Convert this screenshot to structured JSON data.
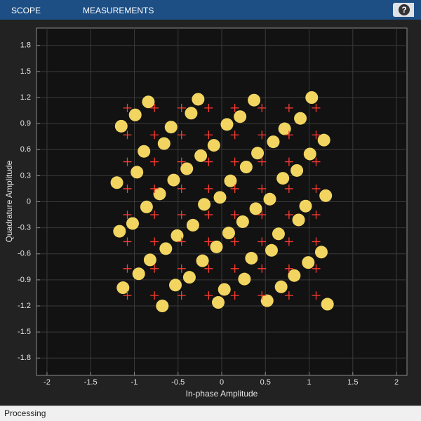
{
  "toolbar": {
    "tabs": [
      "SCOPE",
      "MEASUREMENTS"
    ],
    "help": "?"
  },
  "status": "Processing",
  "chart_data": {
    "type": "scatter",
    "xlabel": "In-phase Amplitude",
    "ylabel": "Quadrature Amplitude",
    "xlim": [
      -2.12,
      2.12
    ],
    "ylim": [
      -2,
      2
    ],
    "xticks": [
      -2,
      -1.5,
      -1,
      -0.5,
      0,
      0.5,
      1,
      1.5,
      2
    ],
    "yticks": [
      -1.8,
      -1.5,
      -1.2,
      -0.9,
      -0.6,
      -0.3,
      0,
      0.3,
      0.6,
      0.9,
      1.2,
      1.5,
      1.8
    ],
    "grid": true,
    "series": [
      {
        "color": "#ffe066",
        "marker": "dot",
        "x": [
          -0.99,
          -0.84,
          -0.35,
          -0.27,
          0.21,
          0.37,
          0.9,
          1.03,
          -1.15,
          -0.66,
          -0.58,
          -0.09,
          0.06,
          0.59,
          0.72,
          1.17,
          -0.97,
          -0.89,
          -0.4,
          -0.24,
          0.28,
          0.41,
          0.86,
          1.01,
          -1.2,
          -0.71,
          -0.55,
          -0.02,
          0.1,
          0.55,
          0.7,
          1.19,
          -1.02,
          -0.86,
          -0.33,
          -0.2,
          0.24,
          0.39,
          0.88,
          0.96,
          -1.17,
          -0.64,
          -0.51,
          -0.06,
          0.08,
          0.57,
          0.65,
          1.14,
          -0.95,
          -0.82,
          -0.37,
          -0.22,
          0.26,
          0.34,
          0.83,
          0.99,
          -1.13,
          -0.68,
          -0.53,
          -0.04,
          0.03,
          0.52,
          0.68,
          1.21
        ],
        "y": [
          1.0,
          1.15,
          1.02,
          1.18,
          0.98,
          1.17,
          0.96,
          1.2,
          0.87,
          0.67,
          0.86,
          0.65,
          0.89,
          0.69,
          0.84,
          0.71,
          0.34,
          0.58,
          0.38,
          0.53,
          0.4,
          0.56,
          0.36,
          0.55,
          0.22,
          0.09,
          0.25,
          0.05,
          0.24,
          0.03,
          0.27,
          0.07,
          -0.25,
          -0.06,
          -0.27,
          -0.03,
          -0.23,
          -0.08,
          -0.21,
          -0.05,
          -0.34,
          -0.54,
          -0.39,
          -0.52,
          -0.36,
          -0.56,
          -0.37,
          -0.58,
          -0.83,
          -0.67,
          -0.87,
          -0.68,
          -0.89,
          -0.65,
          -0.85,
          -0.7,
          -0.99,
          -1.2,
          -0.96,
          -1.16,
          -1.01,
          -1.14,
          -0.98,
          -1.18
        ]
      },
      {
        "color": "#ff3b30",
        "marker": "plus",
        "x": [
          -1.08,
          -0.77,
          -0.46,
          -0.15,
          0.15,
          0.46,
          0.77,
          1.08,
          -1.08,
          -0.77,
          -0.46,
          -0.15,
          0.15,
          0.46,
          0.77,
          1.08,
          -1.08,
          -0.77,
          -0.46,
          -0.15,
          0.15,
          0.46,
          0.77,
          1.08,
          -1.08,
          -0.77,
          -0.46,
          -0.15,
          0.15,
          0.46,
          0.77,
          1.08,
          -1.08,
          -0.77,
          -0.46,
          -0.15,
          0.15,
          0.46,
          0.77,
          1.08,
          -1.08,
          -0.77,
          -0.46,
          -0.15,
          0.15,
          0.46,
          0.77,
          1.08,
          -1.08,
          -0.77,
          -0.46,
          -0.15,
          0.15,
          0.46,
          0.77,
          1.08,
          -1.08,
          -0.77,
          -0.46,
          -0.15,
          0.15,
          0.46,
          0.77,
          1.08
        ],
        "y": [
          1.08,
          1.08,
          1.08,
          1.08,
          1.08,
          1.08,
          1.08,
          1.08,
          0.77,
          0.77,
          0.77,
          0.77,
          0.77,
          0.77,
          0.77,
          0.77,
          0.46,
          0.46,
          0.46,
          0.46,
          0.46,
          0.46,
          0.46,
          0.46,
          0.15,
          0.15,
          0.15,
          0.15,
          0.15,
          0.15,
          0.15,
          0.15,
          -0.15,
          -0.15,
          -0.15,
          -0.15,
          -0.15,
          -0.15,
          -0.15,
          -0.15,
          -0.46,
          -0.46,
          -0.46,
          -0.46,
          -0.46,
          -0.46,
          -0.46,
          -0.46,
          -0.77,
          -0.77,
          -0.77,
          -0.77,
          -0.77,
          -0.77,
          -0.77,
          -0.77,
          -1.08,
          -1.08,
          -1.08,
          -1.08,
          -1.08,
          -1.08,
          -1.08,
          -1.08
        ]
      }
    ]
  }
}
